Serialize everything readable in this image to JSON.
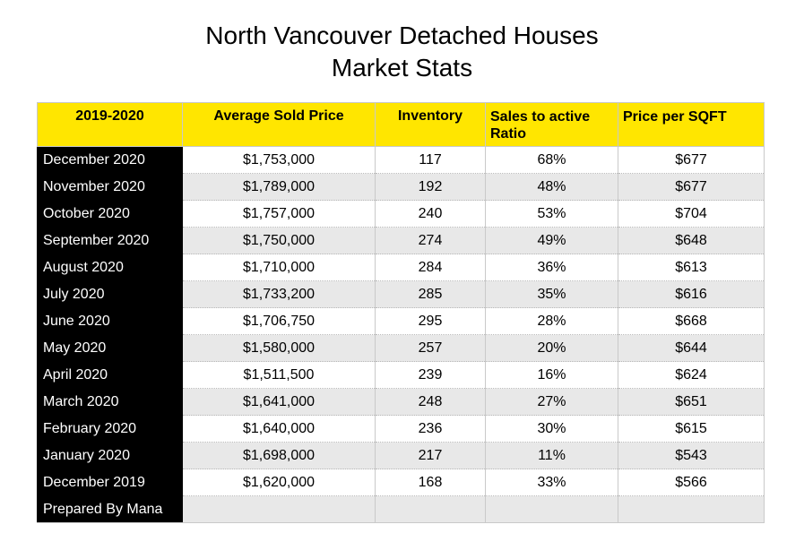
{
  "title": {
    "line1": "North Vancouver Detached Houses",
    "line2": "Market Stats"
  },
  "table": {
    "headers": [
      "2019-2020",
      "Average Sold Price",
      "Inventory",
      "Sales to active Ratio",
      "Price per SQFT"
    ],
    "rows": [
      [
        "December 2020",
        "$1,753,000",
        "117",
        "68%",
        "$677"
      ],
      [
        "November 2020",
        "$1,789,000",
        "192",
        "48%",
        "$677"
      ],
      [
        "October 2020",
        "$1,757,000",
        "240",
        "53%",
        "$704"
      ],
      [
        "September 2020",
        "$1,750,000",
        "274",
        "49%",
        "$648"
      ],
      [
        "August 2020",
        "$1,710,000",
        "284",
        "36%",
        "$613"
      ],
      [
        "July 2020",
        "$1,733,200",
        "285",
        "35%",
        "$616"
      ],
      [
        "June 2020",
        "$1,706,750",
        "295",
        "28%",
        "$668"
      ],
      [
        "May 2020",
        "$1,580,000",
        "257",
        "20%",
        "$644"
      ],
      [
        "April 2020",
        "$1,511,500",
        "239",
        "16%",
        "$624"
      ],
      [
        "March 2020",
        "$1,641,000",
        "248",
        "27%",
        "$651"
      ],
      [
        "February 2020",
        "$1,640,000",
        "236",
        "30%",
        "$615"
      ],
      [
        "January 2020",
        "$1,698,000",
        "217",
        "11%",
        "$543"
      ],
      [
        "December 2019",
        "$1,620,000",
        "168",
        "33%",
        "$566"
      ]
    ],
    "footer": "Prepared By Mana"
  },
  "colors": {
    "header_bg": "#ffe600",
    "month_bg": "#000000",
    "alt_row_bg": "#e8e8e8"
  }
}
